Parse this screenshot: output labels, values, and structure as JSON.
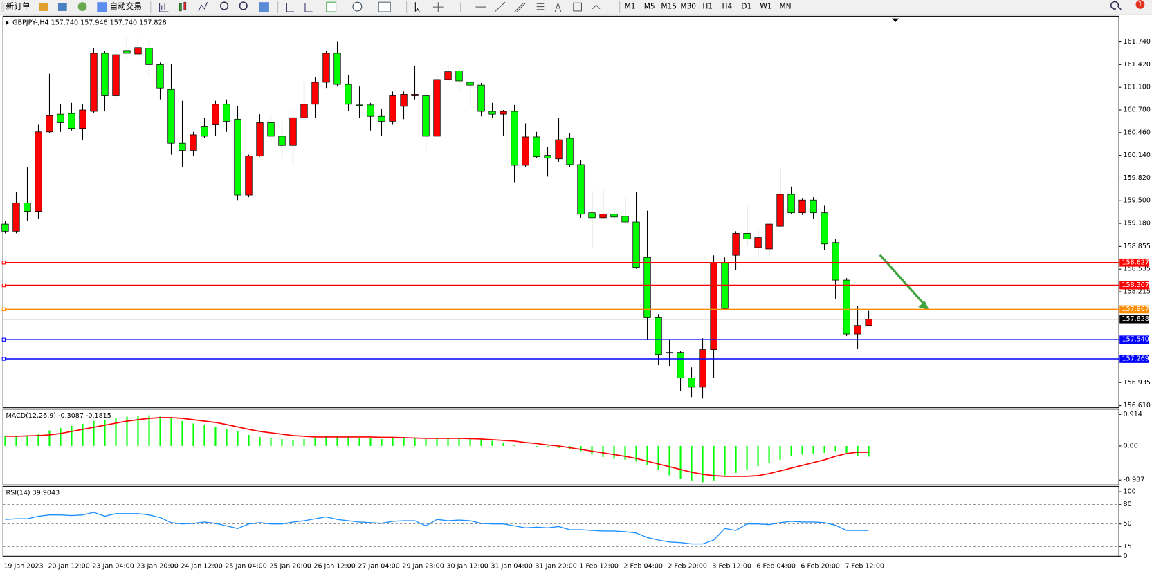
{
  "toolbar": {
    "new_order": "新订单",
    "auto_trading": "自动交易",
    "timeframes": [
      "M1",
      "M5",
      "M15",
      "M30",
      "H1",
      "H4",
      "D1",
      "W1",
      "MN"
    ],
    "notifications": 1
  },
  "chart_data": [
    {
      "type": "candlestick",
      "title": "GBPJPY-,H4  157.740 157.946 157.740 157.828",
      "categories": [
        "19 Jan 2023",
        null,
        null,
        null,
        "20 Jan 12:00",
        null,
        null,
        null,
        "23 Jan 04:00",
        null,
        null,
        null,
        "23 Jan 20:00",
        null,
        null,
        null,
        "24 Jan 12:00",
        null,
        null,
        null,
        "25 Jan 04:00",
        null,
        null,
        null,
        "25 Jan 20:00",
        null,
        null,
        null,
        "26 Jan 12:00",
        null,
        null,
        null,
        "27 Jan 04:00",
        null,
        null,
        null,
        "29 Jan 23:00",
        null,
        null,
        null,
        "30 Jan 12:00",
        null,
        null,
        null,
        "31 Jan 04:00",
        null,
        null,
        null,
        "31 Jan 20:00",
        null,
        null,
        null,
        "1 Feb 12:00",
        null,
        null,
        null,
        "2 Feb 04:00",
        null,
        null,
        null,
        "2 Feb 20:00",
        null,
        null,
        null,
        "3 Feb 12:00",
        null,
        null,
        null,
        "6 Feb 04:00",
        null,
        null,
        null,
        "6 Feb 20:00",
        null,
        null,
        null,
        "7 Feb 12:00",
        null,
        null
      ],
      "ohlc": [
        [
          159.17,
          159.22,
          159.04,
          159.07
        ],
        [
          159.07,
          159.62,
          159.04,
          159.47
        ],
        [
          159.47,
          159.97,
          159.22,
          159.35
        ],
        [
          159.35,
          160.57,
          159.24,
          160.47
        ],
        [
          160.47,
          161.29,
          160.45,
          160.7
        ],
        [
          160.72,
          160.86,
          160.47,
          160.6
        ],
        [
          160.73,
          160.88,
          160.49,
          160.52
        ],
        [
          160.52,
          160.86,
          160.36,
          160.78
        ],
        [
          160.76,
          161.65,
          160.73,
          161.58
        ],
        [
          161.58,
          161.61,
          160.76,
          160.98
        ],
        [
          160.98,
          161.61,
          160.92,
          161.56
        ],
        [
          161.61,
          161.81,
          161.5,
          161.58
        ],
        [
          161.57,
          161.79,
          161.52,
          161.66
        ],
        [
          161.65,
          161.76,
          161.24,
          161.42
        ],
        [
          161.42,
          161.45,
          160.93,
          161.09
        ],
        [
          161.07,
          161.43,
          160.15,
          160.31
        ],
        [
          160.31,
          160.91,
          159.97,
          160.21
        ],
        [
          160.21,
          160.47,
          160.13,
          160.43
        ],
        [
          160.55,
          160.67,
          160.38,
          160.41
        ],
        [
          160.57,
          160.91,
          160.41,
          160.86
        ],
        [
          160.86,
          160.93,
          160.47,
          160.62
        ],
        [
          160.65,
          160.83,
          159.51,
          159.58
        ],
        [
          159.58,
          160.15,
          159.55,
          160.13
        ],
        [
          160.13,
          160.72,
          160.12,
          160.6
        ],
        [
          160.6,
          160.72,
          160.36,
          160.41
        ],
        [
          160.41,
          160.62,
          160.1,
          160.28
        ],
        [
          160.28,
          160.78,
          160.0,
          160.67
        ],
        [
          160.67,
          161.19,
          160.65,
          160.86
        ],
        [
          160.86,
          161.24,
          160.67,
          161.17
        ],
        [
          161.17,
          161.61,
          161.09,
          161.58
        ],
        [
          161.58,
          161.74,
          161.11,
          161.14
        ],
        [
          161.14,
          161.27,
          160.76,
          160.86
        ],
        [
          160.85,
          161.11,
          160.67,
          160.84
        ],
        [
          160.85,
          160.88,
          160.49,
          160.69
        ],
        [
          160.69,
          160.8,
          160.41,
          160.62
        ],
        [
          160.62,
          161.04,
          160.57,
          160.98
        ],
        [
          160.83,
          161.04,
          160.65,
          161.0
        ],
        [
          160.98,
          161.4,
          160.93,
          161.0
        ],
        [
          160.98,
          161.04,
          160.21,
          160.41
        ],
        [
          160.41,
          161.29,
          160.39,
          161.21
        ],
        [
          161.21,
          161.42,
          161.19,
          161.32
        ],
        [
          161.33,
          161.4,
          161.04,
          161.19
        ],
        [
          161.17,
          161.19,
          160.83,
          161.13
        ],
        [
          161.13,
          161.16,
          160.69,
          160.76
        ],
        [
          160.76,
          160.88,
          160.67,
          160.72
        ],
        [
          160.72,
          160.78,
          160.41,
          160.76
        ],
        [
          160.76,
          160.85,
          159.76,
          160.0
        ],
        [
          160.0,
          160.59,
          159.97,
          160.4
        ],
        [
          160.4,
          160.47,
          160.1,
          160.12
        ],
        [
          160.14,
          160.26,
          159.84,
          160.1
        ],
        [
          160.09,
          160.67,
          160.05,
          160.36
        ],
        [
          160.38,
          160.45,
          159.97,
          160.01
        ],
        [
          160.01,
          160.07,
          159.26,
          159.31
        ],
        [
          159.33,
          159.64,
          158.84,
          159.26
        ],
        [
          159.26,
          159.67,
          159.22,
          159.31
        ],
        [
          159.31,
          159.38,
          159.19,
          159.27
        ],
        [
          159.28,
          159.55,
          159.17,
          159.2
        ],
        [
          159.2,
          159.62,
          158.54,
          158.56
        ],
        [
          158.7,
          159.36,
          157.54,
          157.85
        ],
        [
          157.85,
          157.9,
          157.18,
          157.33
        ],
        [
          157.36,
          157.54,
          157.17,
          157.35
        ],
        [
          157.36,
          157.38,
          156.82,
          157.0
        ],
        [
          157.0,
          157.15,
          156.73,
          156.87
        ],
        [
          156.87,
          157.56,
          156.71,
          157.4
        ],
        [
          157.4,
          158.73,
          157.0,
          158.63
        ],
        [
          158.63,
          158.7,
          157.96,
          157.98
        ],
        [
          158.73,
          159.07,
          158.52,
          159.04
        ],
        [
          159.04,
          159.43,
          158.86,
          158.96
        ],
        [
          158.84,
          159.1,
          158.71,
          158.98
        ],
        [
          158.82,
          159.22,
          158.73,
          159.17
        ],
        [
          159.14,
          159.95,
          159.12,
          159.59
        ],
        [
          159.59,
          159.7,
          159.31,
          159.33
        ],
        [
          159.33,
          159.53,
          159.3,
          159.51
        ],
        [
          159.51,
          159.55,
          159.24,
          159.33
        ],
        [
          159.33,
          159.43,
          158.81,
          158.89
        ],
        [
          158.91,
          158.96,
          158.11,
          158.38
        ],
        [
          158.38,
          158.41,
          157.59,
          157.62
        ],
        [
          157.62,
          158.01,
          157.41,
          157.74
        ],
        [
          157.74,
          157.946,
          157.74,
          157.828
        ]
      ],
      "up_color": "#ff0000",
      "down_color": "#00ff00",
      "ylim": [
        156.59,
        162.082
      ],
      "yticks": [
        {
          "value": 161.74,
          "label": "161.740"
        },
        {
          "value": 161.42,
          "label": "161.420"
        },
        {
          "value": 161.1,
          "label": "161.100"
        },
        {
          "value": 160.78,
          "label": "160.780"
        },
        {
          "value": 160.46,
          "label": "160.460"
        },
        {
          "value": 160.14,
          "label": "160.140"
        },
        {
          "value": 159.82,
          "label": "159.820"
        },
        {
          "value": 159.5,
          "label": "159.500"
        },
        {
          "value": 159.18,
          "label": "159.180"
        },
        158.855,
        158.535,
        158.215,
        156.935,
        {
          "value": 156.61,
          "label": "156.610"
        }
      ],
      "levels": [
        {
          "value": 158.627,
          "color": "#ff0000"
        },
        {
          "value": 158.307,
          "color": "#ff0000"
        },
        {
          "value": 157.967,
          "color": "#ff8c00"
        },
        {
          "value": 157.54,
          "label": "157.540",
          "color": "#0000ff"
        },
        {
          "value": 157.269,
          "color": "#0000ff"
        }
      ],
      "current_price": 157.828
    },
    {
      "type": "macd",
      "title": "MACD(12,26,9) -0.3087 -0.1815",
      "histogram": {
        "color": "#00ff00",
        "values": [
          0.3,
          0.3,
          0.3,
          0.35,
          0.45,
          0.52,
          0.58,
          0.64,
          0.72,
          0.76,
          0.82,
          0.85,
          0.88,
          0.89,
          0.85,
          0.8,
          0.72,
          0.65,
          0.6,
          0.55,
          0.5,
          0.42,
          0.32,
          0.26,
          0.24,
          0.2,
          0.18,
          0.2,
          0.24,
          0.28,
          0.3,
          0.28,
          0.24,
          0.22,
          0.2,
          0.22,
          0.22,
          0.22,
          0.2,
          0.22,
          0.24,
          0.24,
          0.22,
          0.2,
          0.15,
          0.1,
          0.02,
          0.0,
          -0.02,
          -0.04,
          -0.06,
          -0.08,
          -0.15,
          -0.25,
          -0.32,
          -0.37,
          -0.4,
          -0.45,
          -0.55,
          -0.7,
          -0.85,
          -0.95,
          -1.0,
          -1.05,
          -1.0,
          -0.85,
          -0.78,
          -0.68,
          -0.58,
          -0.5,
          -0.4,
          -0.3,
          -0.25,
          -0.22,
          -0.2,
          -0.15,
          -0.2,
          -0.28,
          -0.3087
        ]
      },
      "signal": {
        "color": "#ff0000",
        "values": [
          0.28,
          0.28,
          0.29,
          0.3,
          0.32,
          0.36,
          0.42,
          0.48,
          0.54,
          0.6,
          0.66,
          0.72,
          0.76,
          0.8,
          0.82,
          0.82,
          0.8,
          0.76,
          0.72,
          0.68,
          0.62,
          0.55,
          0.48,
          0.42,
          0.38,
          0.34,
          0.3,
          0.28,
          0.26,
          0.26,
          0.26,
          0.26,
          0.26,
          0.26,
          0.25,
          0.25,
          0.24,
          0.23,
          0.22,
          0.22,
          0.22,
          0.22,
          0.21,
          0.2,
          0.18,
          0.16,
          0.14,
          0.1,
          0.07,
          0.03,
          0.0,
          -0.05,
          -0.1,
          -0.15,
          -0.2,
          -0.25,
          -0.3,
          -0.36,
          -0.44,
          -0.52,
          -0.6,
          -0.68,
          -0.76,
          -0.82,
          -0.86,
          -0.88,
          -0.88,
          -0.88,
          -0.86,
          -0.8,
          -0.72,
          -0.64,
          -0.56,
          -0.48,
          -0.4,
          -0.3,
          -0.22,
          -0.18,
          -0.1815
        ]
      },
      "ylim": [
        -1.106,
        1.021
      ],
      "yticks": [
        0.914,
        {
          "value": 0,
          "label": "0.00"
        },
        -0.987
      ]
    },
    {
      "type": "line",
      "title": "RSI(14) 39.9043",
      "color": "#1e90ff",
      "values": [
        57,
        58,
        58,
        62,
        64,
        64,
        63,
        64,
        68,
        62,
        66,
        66,
        66,
        64,
        60,
        52,
        50,
        51,
        53,
        51,
        47,
        43,
        50,
        52,
        50,
        50,
        53,
        55,
        58,
        61,
        57,
        55,
        53,
        52,
        51,
        54,
        55,
        55,
        47,
        57,
        55,
        56,
        55,
        51,
        50,
        50,
        47,
        44,
        45,
        44,
        46,
        41,
        41,
        40,
        39,
        39,
        38,
        36,
        29,
        25,
        22,
        21,
        19,
        19,
        25,
        43,
        40,
        50,
        50,
        49,
        52,
        54,
        53,
        53,
        52,
        48,
        40,
        40,
        39.9043
      ],
      "ylim": [
        0,
        106
      ],
      "yticks": [
        100,
        80,
        50,
        15,
        0
      ]
    }
  ]
}
